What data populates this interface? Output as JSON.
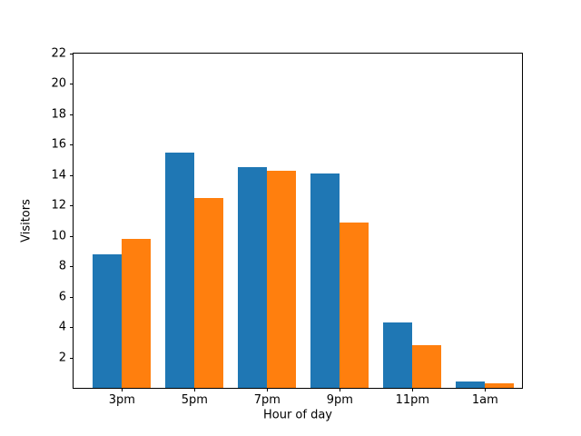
{
  "chart_data": {
    "type": "bar",
    "title": "",
    "xlabel": "Hour of day",
    "ylabel": "Visitors",
    "categories": [
      "3pm",
      "5pm",
      "7pm",
      "9pm",
      "11pm",
      "1am"
    ],
    "series": [
      {
        "name": "blue",
        "color": "#1f77b4",
        "values": [
          8.8,
          15.5,
          14.5,
          14.1,
          4.3,
          0.4
        ]
      },
      {
        "name": "orange",
        "color": "#ff7f0e",
        "values": [
          9.8,
          12.5,
          14.3,
          10.9,
          2.8,
          0.3
        ]
      }
    ],
    "ylim": [
      0,
      22
    ],
    "yticks": [
      2,
      4,
      6,
      8,
      10,
      12,
      14,
      16,
      18,
      20,
      22
    ],
    "bar_width_units": 0.4,
    "grid": false,
    "legend": "none",
    "background_color": "#ffffff",
    "axis_color": "#000000"
  }
}
